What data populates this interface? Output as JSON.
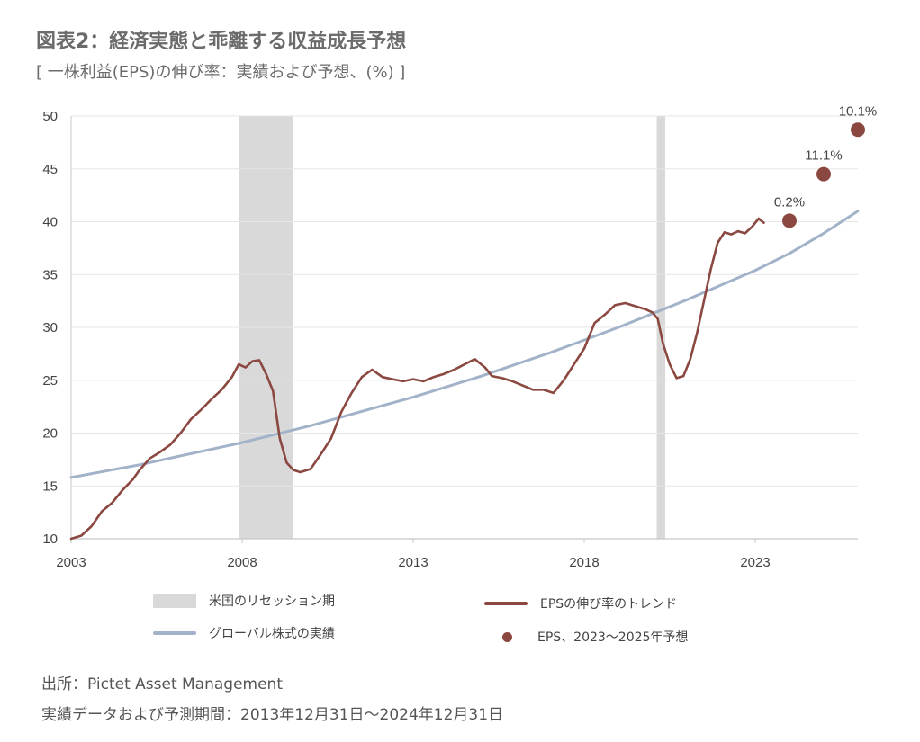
{
  "header": {
    "title": "図表2：経済実態と乖離する収益成長予想",
    "subtitle": "[ 一株利益(EPS)の伸び率：実績および予想、(%) ]"
  },
  "chart_data": {
    "type": "line",
    "xlim": [
      2003,
      2026
    ],
    "ylim": [
      10,
      50
    ],
    "x_ticks": [
      2003,
      2008,
      2013,
      2018,
      2023
    ],
    "y_ticks": [
      10,
      15,
      20,
      25,
      30,
      35,
      40,
      45,
      50
    ],
    "grid": true,
    "recessions": [
      {
        "name": "米国のリセッション期",
        "start": 2007.9,
        "end": 2009.5
      },
      {
        "name": "米国のリセッション期",
        "start": 2020.12,
        "end": 2020.37
      }
    ],
    "series": [
      {
        "name": "グローバル株式の実績",
        "color": "#a2b2c9",
        "points": [
          [
            2003.0,
            15.8
          ],
          [
            2004.0,
            16.4
          ],
          [
            2005.0,
            17.0
          ],
          [
            2006.0,
            17.7
          ],
          [
            2007.0,
            18.4
          ],
          [
            2008.0,
            19.1
          ],
          [
            2009.0,
            19.9
          ],
          [
            2010.0,
            20.7
          ],
          [
            2011.0,
            21.6
          ],
          [
            2012.0,
            22.5
          ],
          [
            2013.0,
            23.4
          ],
          [
            2014.0,
            24.4
          ],
          [
            2015.0,
            25.4
          ],
          [
            2016.0,
            26.5
          ],
          [
            2017.0,
            27.6
          ],
          [
            2018.0,
            28.8
          ],
          [
            2019.0,
            30.0
          ],
          [
            2020.0,
            31.3
          ],
          [
            2021.0,
            32.6
          ],
          [
            2022.0,
            34.0
          ],
          [
            2023.0,
            35.4
          ],
          [
            2024.0,
            37.0
          ],
          [
            2025.0,
            38.9
          ],
          [
            2026.0,
            41.0
          ]
        ]
      },
      {
        "name": "EPSの伸び率のトレンド",
        "color": "#8b4840",
        "points": [
          [
            2003.0,
            10.0
          ],
          [
            2003.3,
            10.3
          ],
          [
            2003.6,
            11.2
          ],
          [
            2003.9,
            12.6
          ],
          [
            2004.2,
            13.4
          ],
          [
            2004.5,
            14.6
          ],
          [
            2004.8,
            15.6
          ],
          [
            2005.0,
            16.5
          ],
          [
            2005.3,
            17.6
          ],
          [
            2005.6,
            18.2
          ],
          [
            2005.9,
            18.9
          ],
          [
            2006.2,
            20.0
          ],
          [
            2006.5,
            21.3
          ],
          [
            2006.8,
            22.2
          ],
          [
            2007.1,
            23.2
          ],
          [
            2007.4,
            24.1
          ],
          [
            2007.7,
            25.3
          ],
          [
            2007.9,
            26.5
          ],
          [
            2008.1,
            26.2
          ],
          [
            2008.3,
            26.8
          ],
          [
            2008.5,
            26.9
          ],
          [
            2008.7,
            25.6
          ],
          [
            2008.9,
            24.0
          ],
          [
            2009.1,
            19.5
          ],
          [
            2009.3,
            17.2
          ],
          [
            2009.5,
            16.5
          ],
          [
            2009.7,
            16.3
          ],
          [
            2010.0,
            16.6
          ],
          [
            2010.3,
            18.0
          ],
          [
            2010.6,
            19.5
          ],
          [
            2010.9,
            22.0
          ],
          [
            2011.2,
            23.8
          ],
          [
            2011.5,
            25.3
          ],
          [
            2011.8,
            26.0
          ],
          [
            2012.1,
            25.3
          ],
          [
            2012.4,
            25.1
          ],
          [
            2012.7,
            24.9
          ],
          [
            2013.0,
            25.1
          ],
          [
            2013.3,
            24.9
          ],
          [
            2013.6,
            25.3
          ],
          [
            2013.9,
            25.6
          ],
          [
            2014.2,
            26.0
          ],
          [
            2014.5,
            26.5
          ],
          [
            2014.8,
            27.0
          ],
          [
            2015.1,
            26.2
          ],
          [
            2015.3,
            25.4
          ],
          [
            2015.6,
            25.2
          ],
          [
            2015.9,
            24.9
          ],
          [
            2016.2,
            24.5
          ],
          [
            2016.5,
            24.1
          ],
          [
            2016.8,
            24.1
          ],
          [
            2017.1,
            23.8
          ],
          [
            2017.4,
            25.0
          ],
          [
            2017.7,
            26.5
          ],
          [
            2018.0,
            28.0
          ],
          [
            2018.3,
            30.4
          ],
          [
            2018.6,
            31.2
          ],
          [
            2018.9,
            32.1
          ],
          [
            2019.2,
            32.3
          ],
          [
            2019.5,
            32.0
          ],
          [
            2019.8,
            31.7
          ],
          [
            2020.0,
            31.4
          ],
          [
            2020.15,
            30.8
          ],
          [
            2020.3,
            28.5
          ],
          [
            2020.5,
            26.5
          ],
          [
            2020.7,
            25.2
          ],
          [
            2020.9,
            25.4
          ],
          [
            2021.1,
            27.0
          ],
          [
            2021.3,
            29.5
          ],
          [
            2021.5,
            32.5
          ],
          [
            2021.7,
            35.5
          ],
          [
            2021.9,
            38.0
          ],
          [
            2022.1,
            39.0
          ],
          [
            2022.3,
            38.8
          ],
          [
            2022.5,
            39.1
          ],
          [
            2022.7,
            38.9
          ],
          [
            2022.9,
            39.5
          ],
          [
            2023.1,
            40.3
          ],
          [
            2023.25,
            39.9
          ]
        ]
      }
    ],
    "forecast": {
      "name": "EPS、2023〜2025年予想",
      "color": "#8b4840",
      "points": [
        {
          "x": 2024.0,
          "y": 40.1,
          "label": "0.2%"
        },
        {
          "x": 2025.0,
          "y": 44.5,
          "label": "11.1%"
        },
        {
          "x": 2026.0,
          "y": 48.7,
          "label": "10.1%"
        }
      ]
    }
  },
  "legend": {
    "recession": "米国のリセッション期",
    "eps_trend": "EPSの伸び率のトレンド",
    "global_equity": "グローバル株式の実績",
    "eps_forecast": "EPS、2023〜2025年予想",
    "recession_color": "#d9d9d9",
    "eps_color": "#8b4840",
    "global_color": "#a2b2c9"
  },
  "footer": {
    "source": "出所：Pictet Asset Management",
    "period": "実績データおよび予測期間：2013年12月31日〜2024年12月31日"
  }
}
